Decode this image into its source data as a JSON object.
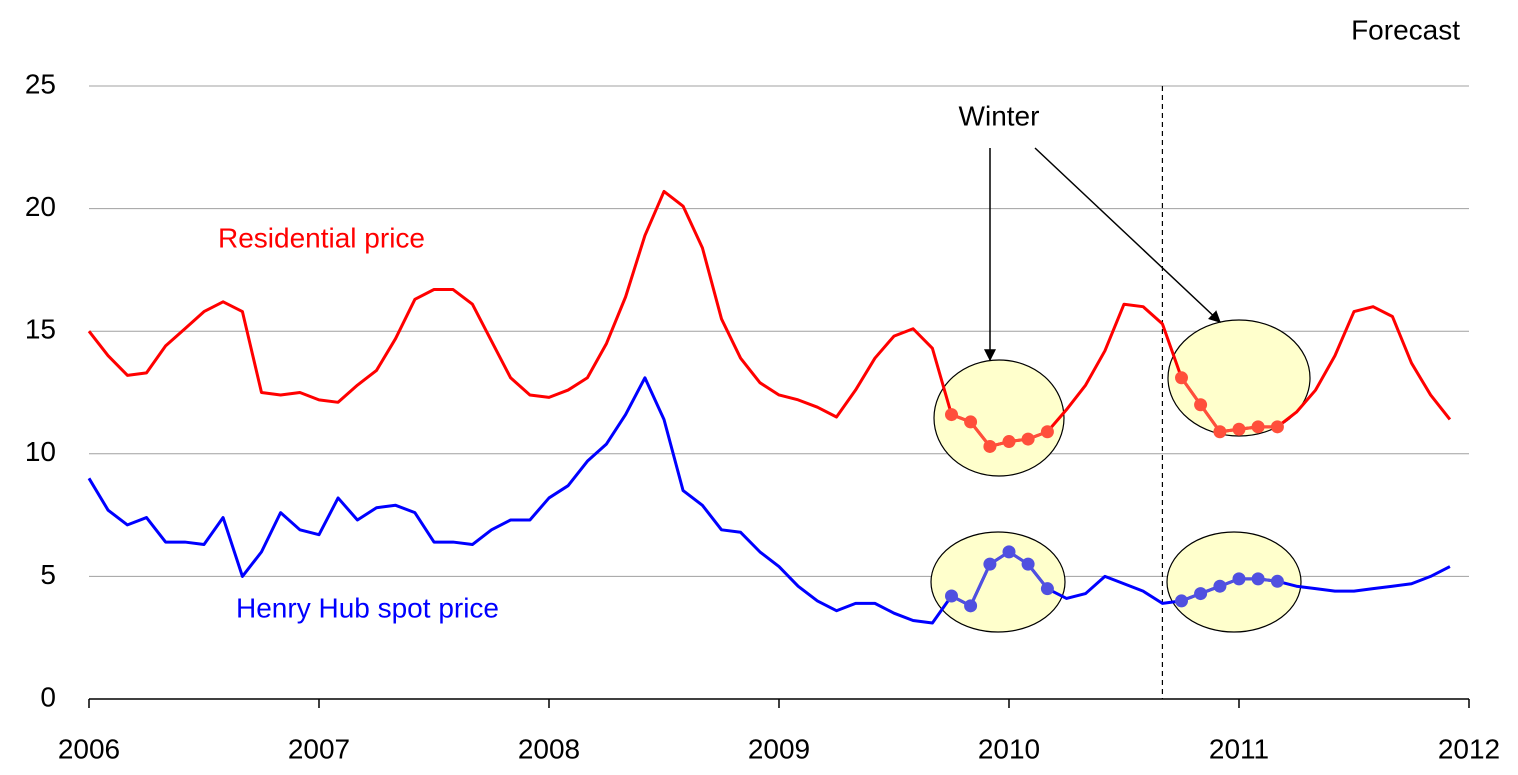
{
  "chart_data": {
    "type": "line",
    "x": [
      2006,
      2006.083,
      2006.167,
      2006.25,
      2006.333,
      2006.417,
      2006.5,
      2006.583,
      2006.667,
      2006.75,
      2006.833,
      2006.917,
      2007,
      2007.083,
      2007.167,
      2007.25,
      2007.333,
      2007.417,
      2007.5,
      2007.583,
      2007.667,
      2007.75,
      2007.833,
      2007.917,
      2008,
      2008.083,
      2008.167,
      2008.25,
      2008.333,
      2008.417,
      2008.5,
      2008.583,
      2008.667,
      2008.75,
      2008.833,
      2008.917,
      2009,
      2009.083,
      2009.167,
      2009.25,
      2009.333,
      2009.417,
      2009.5,
      2009.583,
      2009.667,
      2009.75,
      2009.833,
      2009.917,
      2010,
      2010.083,
      2010.167,
      2010.25,
      2010.333,
      2010.417,
      2010.5,
      2010.583,
      2010.667,
      2010.75,
      2010.833,
      2010.917,
      2011,
      2011.083,
      2011.167,
      2011.25,
      2011.333,
      2011.417,
      2011.5,
      2011.583,
      2011.667,
      2011.75,
      2011.833,
      2011.917
    ],
    "series": [
      {
        "name": "Residential price",
        "color": "#ff0000",
        "highlight_color": "#ff4f3b",
        "values": [
          15.0,
          14.0,
          13.2,
          13.3,
          14.4,
          15.1,
          15.8,
          16.2,
          15.8,
          12.5,
          12.4,
          12.5,
          12.2,
          12.1,
          12.8,
          13.4,
          14.7,
          16.3,
          16.7,
          16.7,
          16.1,
          14.6,
          13.1,
          12.4,
          12.3,
          12.6,
          13.1,
          14.5,
          16.4,
          18.9,
          20.7,
          20.1,
          18.4,
          15.5,
          13.9,
          12.9,
          12.4,
          12.2,
          11.9,
          11.5,
          12.6,
          13.9,
          14.8,
          15.1,
          14.3,
          11.6,
          11.3,
          10.3,
          10.5,
          10.6,
          10.9,
          11.8,
          12.8,
          14.2,
          16.1,
          16.0,
          15.3,
          13.1,
          12.0,
          10.9,
          11.0,
          11.1,
          11.1,
          11.7,
          12.6,
          14.0,
          15.8,
          16.0,
          15.6,
          13.7,
          12.4,
          11.4
        ]
      },
      {
        "name": "Henry Hub spot price",
        "color": "#0000ff",
        "highlight_color": "#5050e0",
        "values": [
          9.0,
          7.7,
          7.1,
          7.4,
          6.4,
          6.4,
          6.3,
          7.4,
          5.0,
          6.0,
          7.6,
          6.9,
          6.7,
          8.2,
          7.3,
          7.8,
          7.9,
          7.6,
          6.4,
          6.4,
          6.3,
          6.9,
          7.3,
          7.3,
          8.2,
          8.7,
          9.7,
          10.4,
          11.6,
          13.1,
          11.4,
          8.5,
          7.9,
          6.9,
          6.8,
          6.0,
          5.4,
          4.6,
          4.0,
          3.6,
          3.9,
          3.9,
          3.5,
          3.2,
          3.1,
          4.2,
          3.8,
          5.5,
          6.0,
          5.5,
          4.5,
          4.1,
          4.3,
          5.0,
          4.7,
          4.4,
          3.9,
          4.0,
          4.3,
          4.6,
          4.9,
          4.9,
          4.8,
          4.6,
          4.5,
          4.4,
          4.4,
          4.5,
          4.6,
          4.7,
          5.0,
          5.4
        ]
      }
    ],
    "highlight_points": [
      [
        45,
        46,
        47,
        48,
        49,
        50
      ],
      [
        57,
        58,
        59,
        60,
        61,
        62
      ]
    ],
    "forecast_start": 2010.667,
    "forecast_label": "Forecast",
    "winter_label": "Winter",
    "xlim": [
      2006,
      2012
    ],
    "xticks": [
      2006,
      2007,
      2008,
      2009,
      2010,
      2011,
      2012
    ],
    "ylim": [
      0,
      25
    ],
    "yticks": [
      0,
      5,
      10,
      15,
      20,
      25
    ],
    "grid": true
  }
}
